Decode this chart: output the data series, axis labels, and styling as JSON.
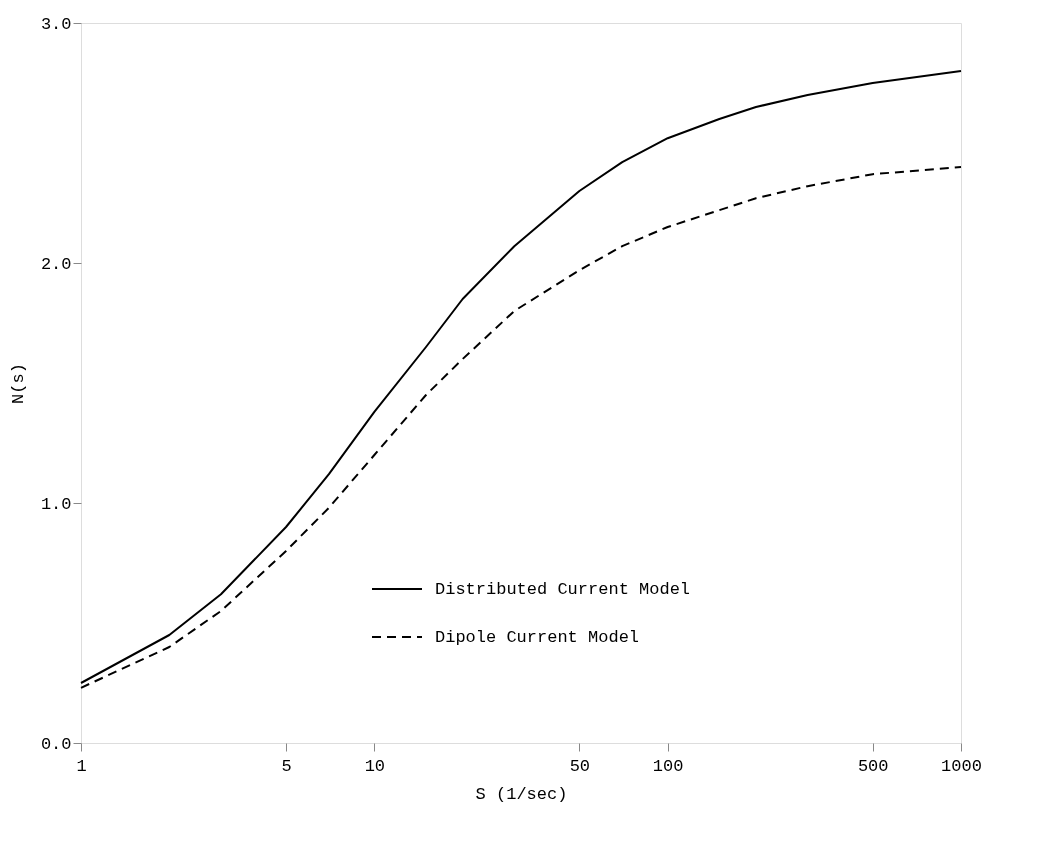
{
  "chart_data": {
    "type": "line",
    "xlabel": "S (1/sec)",
    "ylabel": "N(s)",
    "log": "x",
    "xlim": [
      1,
      1000
    ],
    "xticks": [
      1,
      5,
      10,
      50,
      100,
      500,
      1000
    ],
    "ylim": [
      0,
      3
    ],
    "yticks": [
      {
        "value": 0,
        "label": "0.0"
      },
      {
        "value": 1,
        "label": "1.0"
      },
      {
        "value": 2,
        "label": "2.0"
      },
      {
        "value": 3,
        "label": "3.0"
      }
    ],
    "grid": false,
    "legend": "right",
    "marker": "none",
    "x": [
      1,
      2,
      3,
      5,
      7,
      10,
      15,
      20,
      30,
      50,
      70,
      100,
      150,
      200,
      300,
      500,
      1000
    ],
    "series": [
      {
        "name": "Distributed Current Model",
        "color": "#000000",
        "line_style": "solid",
        "values": [
          0.25,
          0.45,
          0.62,
          0.9,
          1.12,
          1.38,
          1.65,
          1.85,
          2.07,
          2.3,
          2.42,
          2.52,
          2.6,
          2.65,
          2.7,
          2.75,
          2.8
        ]
      },
      {
        "name": "Dipole Current Model",
        "color": "#000000",
        "line_style": "dashed",
        "values": [
          0.23,
          0.4,
          0.55,
          0.8,
          0.98,
          1.2,
          1.45,
          1.6,
          1.8,
          1.97,
          2.07,
          2.15,
          2.22,
          2.27,
          2.32,
          2.37,
          2.4
        ]
      }
    ]
  }
}
